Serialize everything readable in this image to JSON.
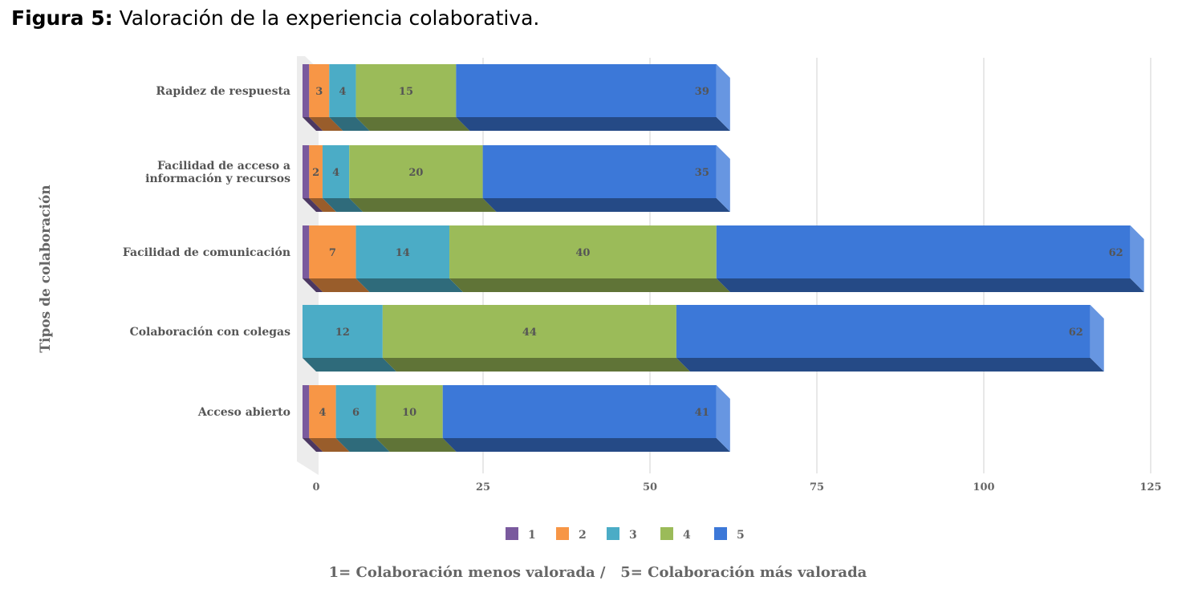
{
  "figure": {
    "label": "Figura 5:",
    "caption": "Valoración de la experiencia colaborativa."
  },
  "chart_data": {
    "type": "bar",
    "orientation": "horizontal",
    "stacked": true,
    "style": "3d",
    "ylabel": "Tipos de colaboración",
    "categories": [
      [
        "Rapidez de respuesta"
      ],
      [
        "Facilidad de acceso a",
        "información y recursos"
      ],
      [
        "Facilidad de comunicación"
      ],
      [
        "Colaboración con colegas"
      ],
      [
        "Acceso abierto"
      ]
    ],
    "series": [
      {
        "name": "1",
        "color": "#7a5a9e",
        "values": [
          1,
          1,
          1,
          0,
          1
        ]
      },
      {
        "name": "2",
        "color": "#f79646",
        "values": [
          3,
          2,
          7,
          0,
          4
        ]
      },
      {
        "name": "3",
        "color": "#4bacc6",
        "values": [
          4,
          4,
          14,
          12,
          6
        ]
      },
      {
        "name": "4",
        "color": "#9bbb59",
        "values": [
          15,
          20,
          40,
          44,
          10
        ]
      },
      {
        "name": "5",
        "color": "#3c78d8",
        "values": [
          39,
          35,
          62,
          62,
          41
        ]
      }
    ],
    "data_labels": [
      [
        "",
        "3",
        "4",
        "15",
        "39"
      ],
      [
        "",
        "2",
        "4",
        "20",
        "35"
      ],
      [
        "",
        "7",
        "14",
        "40",
        "62"
      ],
      [
        "",
        "",
        "12",
        "44",
        "62"
      ],
      [
        "",
        "4",
        "6",
        "10",
        "41"
      ]
    ],
    "xticks": [
      "0",
      "25",
      "50",
      "75",
      "100",
      "125"
    ],
    "xlim": [
      0,
      125
    ],
    "grid": true,
    "legend_position": "bottom",
    "note": "1= Colaboración menos valorada /   5= Colaboración más valorada"
  }
}
